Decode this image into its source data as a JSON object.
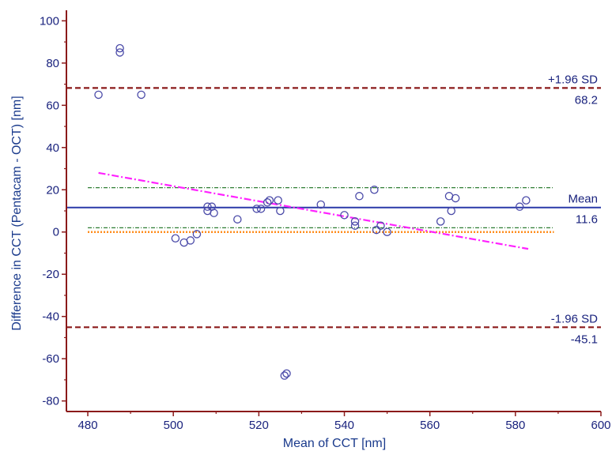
{
  "chart_data": {
    "type": "scatter",
    "title": "",
    "xlabel": "Mean of CCT [nm]",
    "ylabel": "Difference in CCT (Pentacam - OCT) [nm]",
    "xlim": [
      475,
      600
    ],
    "ylim": [
      -85,
      105
    ],
    "x_ticks": [
      480,
      500,
      520,
      540,
      560,
      580,
      600
    ],
    "y_ticks": [
      -80,
      -60,
      -40,
      -20,
      0,
      20,
      40,
      60,
      80,
      100
    ],
    "x_tick_labels": [
      "480",
      "500",
      "520",
      "540",
      "560",
      "580",
      "600"
    ],
    "y_tick_labels": [
      "-80",
      "-60",
      "-40",
      "-20",
      "0",
      "20",
      "40",
      "60",
      "80",
      "100"
    ],
    "grid": false,
    "points": [
      {
        "x": 482.5,
        "y": 65
      },
      {
        "x": 487.5,
        "y": 87
      },
      {
        "x": 487.5,
        "y": 85
      },
      {
        "x": 492.5,
        "y": 65
      },
      {
        "x": 500.5,
        "y": -3
      },
      {
        "x": 502.5,
        "y": -5
      },
      {
        "x": 504,
        "y": -4
      },
      {
        "x": 505.5,
        "y": -1
      },
      {
        "x": 508,
        "y": 12
      },
      {
        "x": 508,
        "y": 10
      },
      {
        "x": 509,
        "y": 12
      },
      {
        "x": 509.5,
        "y": 9
      },
      {
        "x": 515,
        "y": 6
      },
      {
        "x": 519.5,
        "y": 11
      },
      {
        "x": 520.5,
        "y": 11
      },
      {
        "x": 522,
        "y": 14
      },
      {
        "x": 522.5,
        "y": 15
      },
      {
        "x": 524.5,
        "y": 15
      },
      {
        "x": 525,
        "y": 10
      },
      {
        "x": 526,
        "y": -68
      },
      {
        "x": 526.5,
        "y": -67
      },
      {
        "x": 534.5,
        "y": 13
      },
      {
        "x": 540,
        "y": 8
      },
      {
        "x": 542.5,
        "y": 5
      },
      {
        "x": 542.5,
        "y": 3
      },
      {
        "x": 543.5,
        "y": 17
      },
      {
        "x": 547,
        "y": 20
      },
      {
        "x": 547.5,
        "y": 1
      },
      {
        "x": 548.5,
        "y": 3
      },
      {
        "x": 550,
        "y": 0
      },
      {
        "x": 562.5,
        "y": 5
      },
      {
        "x": 564.5,
        "y": 17
      },
      {
        "x": 565,
        "y": 10
      },
      {
        "x": 566,
        "y": 16
      },
      {
        "x": 581,
        "y": 12
      },
      {
        "x": 582.5,
        "y": 15
      }
    ],
    "reference_lines": {
      "mean": {
        "label": "Mean",
        "value": 11.6,
        "value_label": "11.6",
        "color": "#2a3aa8"
      },
      "upper_loa": {
        "label": "+1.96 SD",
        "value": 68.2,
        "value_label": "68.2",
        "color": "#8b1a1a"
      },
      "lower_loa": {
        "label": "-1.96 SD",
        "value": -45.1,
        "value_label": "-45.1",
        "color": "#8b1a1a"
      },
      "zero": {
        "value": 0,
        "color": "#ff8c1a"
      },
      "mean_ci_upper": {
        "value": 21,
        "color": "#2e7d32"
      },
      "mean_ci_lower": {
        "value": 2,
        "color": "#2e7d32"
      },
      "regression": {
        "x": [
          482.5,
          583
        ],
        "y": [
          28,
          -8
        ],
        "color": "#ff22ff"
      }
    },
    "colors": {
      "axis": "#8b1a1a",
      "tick_text": "#1a237e",
      "axis_title": "#1a3a8c",
      "marker": "#4a4aa8"
    }
  }
}
